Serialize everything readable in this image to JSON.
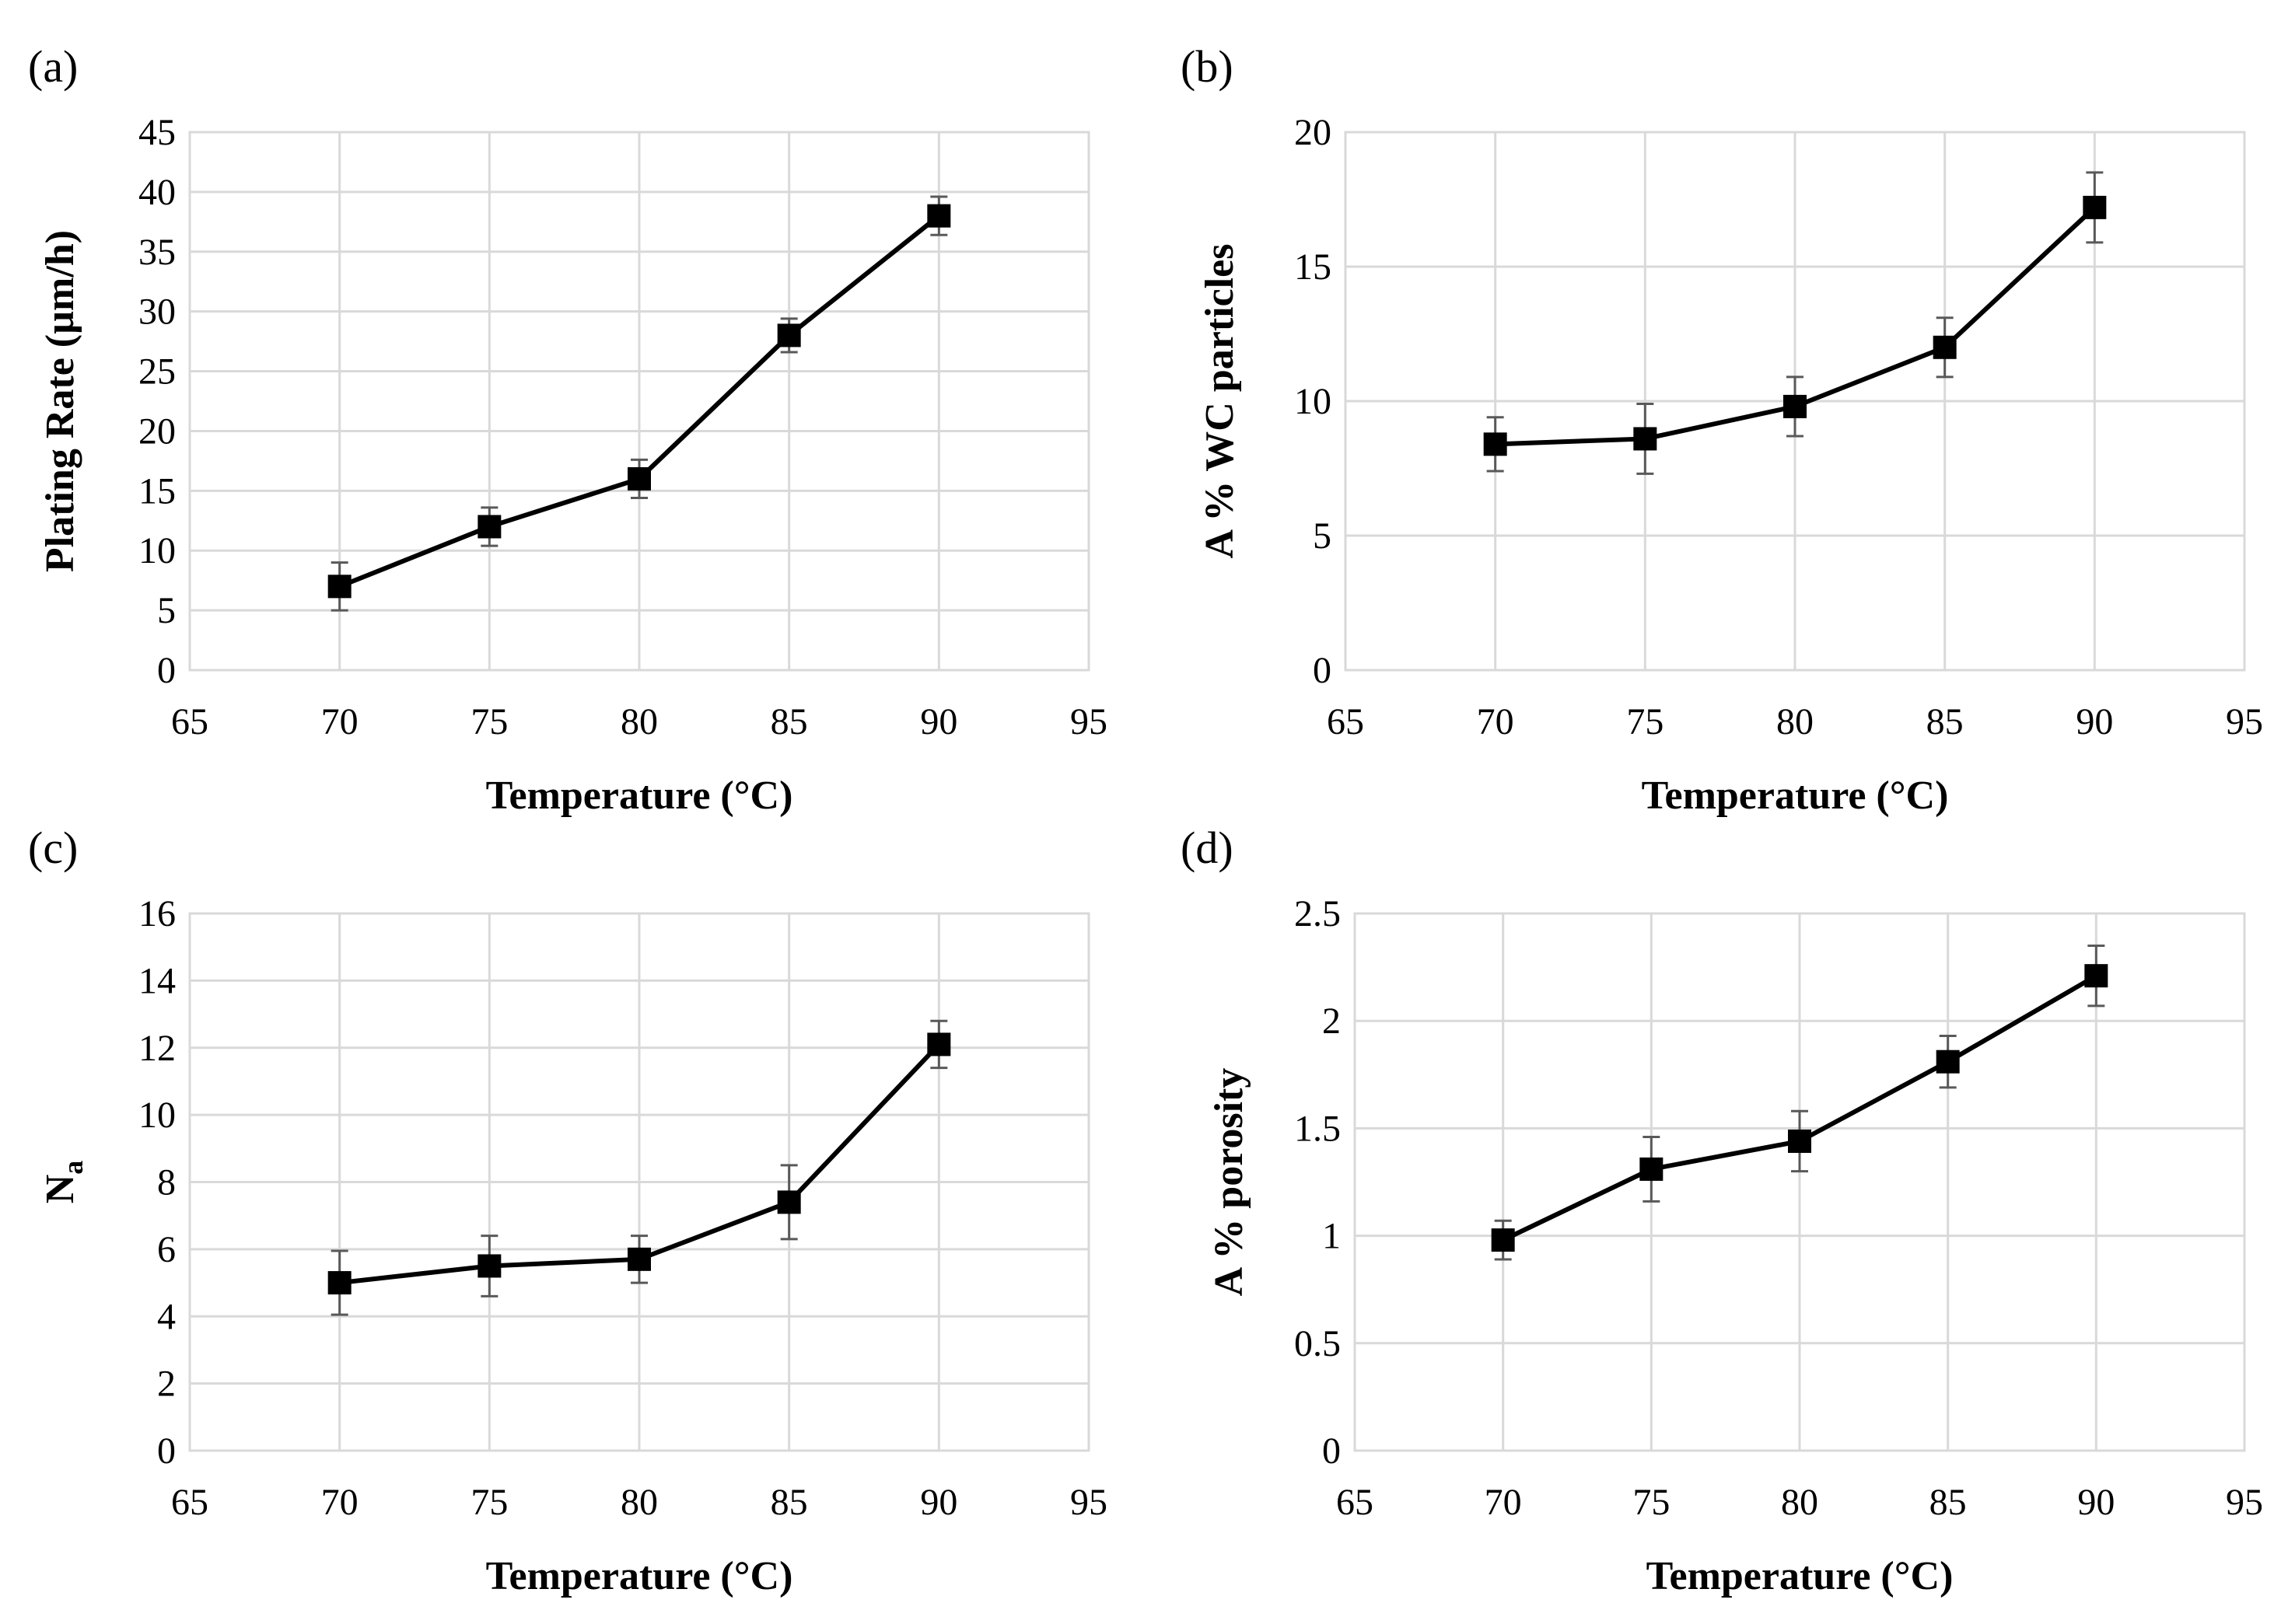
{
  "chart_data": [
    {
      "type": "line",
      "label": "(a)",
      "xlabel": "Temperature (°C)",
      "ylabel": "Plating Rate (µm/h)",
      "xlim": [
        65,
        95
      ],
      "xticks": [
        65,
        70,
        75,
        80,
        85,
        90,
        95
      ],
      "ylim": [
        0,
        45
      ],
      "yticks": [
        0,
        5,
        10,
        15,
        20,
        25,
        30,
        35,
        40,
        45
      ],
      "grid": true,
      "series": [
        {
          "name": "Plating Rate",
          "x": [
            70,
            75,
            80,
            85,
            90
          ],
          "y": [
            7,
            12,
            16,
            28,
            38
          ],
          "err": [
            2.0,
            1.6,
            1.6,
            1.4,
            1.6
          ],
          "color": "#000000"
        }
      ]
    },
    {
      "type": "line",
      "label": "(b)",
      "xlabel": "Temperature (°C)",
      "ylabel": "A % WC particles",
      "xlim": [
        65,
        95
      ],
      "xticks": [
        65,
        70,
        75,
        80,
        85,
        90,
        95
      ],
      "ylim": [
        0,
        20
      ],
      "yticks": [
        0,
        5,
        10,
        15,
        20
      ],
      "grid": true,
      "series": [
        {
          "name": "A % WC particles",
          "x": [
            70,
            75,
            80,
            85,
            90
          ],
          "y": [
            8.4,
            8.6,
            9.8,
            12.0,
            17.2
          ],
          "err": [
            1.0,
            1.3,
            1.1,
            1.1,
            1.3
          ],
          "color": "#000000"
        }
      ]
    },
    {
      "type": "line",
      "label": "(c)",
      "xlabel": "Temperature (°C)",
      "ylabel": "N",
      "ylabel_sub": "a",
      "xlim": [
        65,
        95
      ],
      "xticks": [
        65,
        70,
        75,
        80,
        85,
        90,
        95
      ],
      "ylim": [
        0,
        16
      ],
      "yticks": [
        0,
        2,
        4,
        6,
        8,
        10,
        12,
        14,
        16
      ],
      "grid": true,
      "series": [
        {
          "name": "Na",
          "x": [
            70,
            75,
            80,
            85,
            90
          ],
          "y": [
            5.0,
            5.5,
            5.7,
            7.4,
            12.1
          ],
          "err": [
            0.95,
            0.9,
            0.7,
            1.1,
            0.7
          ],
          "color": "#000000"
        }
      ]
    },
    {
      "type": "line",
      "label": "(d)",
      "xlabel": "Temperature (°C)",
      "ylabel": "A % porosity",
      "xlim": [
        65,
        95
      ],
      "xticks": [
        65,
        70,
        75,
        80,
        85,
        90,
        95
      ],
      "ylim": [
        0,
        2.5
      ],
      "yticks": [
        "0",
        "0.5",
        "1",
        "1.5",
        "2",
        "2.5"
      ],
      "grid": true,
      "series": [
        {
          "name": "A % porosity",
          "x": [
            70,
            75,
            80,
            85,
            90
          ],
          "y": [
            0.98,
            1.31,
            1.44,
            1.81,
            2.21
          ],
          "err": [
            0.09,
            0.15,
            0.14,
            0.12,
            0.14
          ],
          "color": "#000000"
        }
      ]
    }
  ]
}
